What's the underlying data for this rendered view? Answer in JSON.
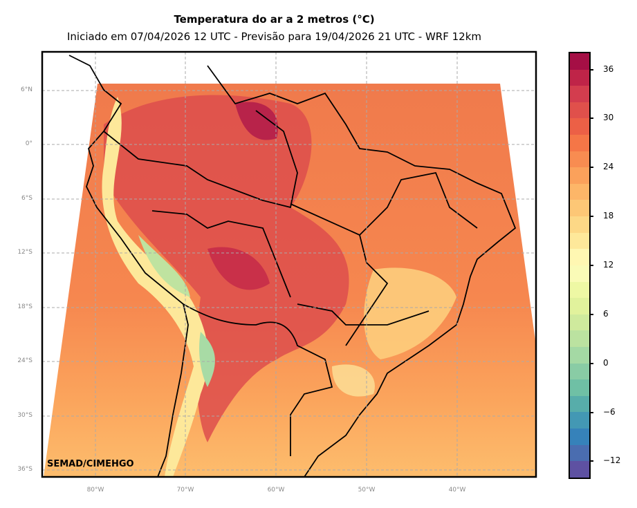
{
  "title": "Temperatura do ar a 2 metros (°C)",
  "subtitle": "Iniciado em 07/04/2026 12 UTC - Previsão para 19/04/2026 21 UTC - WRF 12km",
  "credit": "SEMAD/CIMEHGO",
  "lat_labels": [
    "6°N",
    "0°",
    "6°S",
    "12°S",
    "18°S",
    "24°S",
    "30°S",
    "36°S"
  ],
  "lon_labels": [
    "80°W",
    "70°W",
    "60°W",
    "50°W",
    "40°W"
  ],
  "colorbar": {
    "min": -14,
    "max": 38,
    "step": 2,
    "tick_labels": [
      "36",
      "30",
      "24",
      "18",
      "12",
      "6",
      "0",
      "−6",
      "−12"
    ],
    "colors_top_to_bottom": [
      "#a50f45",
      "#bf2448",
      "#d33d4e",
      "#e0504b",
      "#ec6046",
      "#f57647",
      "#f88c51",
      "#fba15b",
      "#fdb668",
      "#fdc776",
      "#fdd886",
      "#fee89a",
      "#fff7b2",
      "#fafbb7",
      "#eef8a4",
      "#e1f29c",
      "#cfea9d",
      "#bbe2a0",
      "#a4d9a4",
      "#89cca5",
      "#6fc0a5",
      "#57adaa",
      "#4398b4",
      "#3682ba",
      "#4a6db0",
      "#5e51a2"
    ]
  }
}
